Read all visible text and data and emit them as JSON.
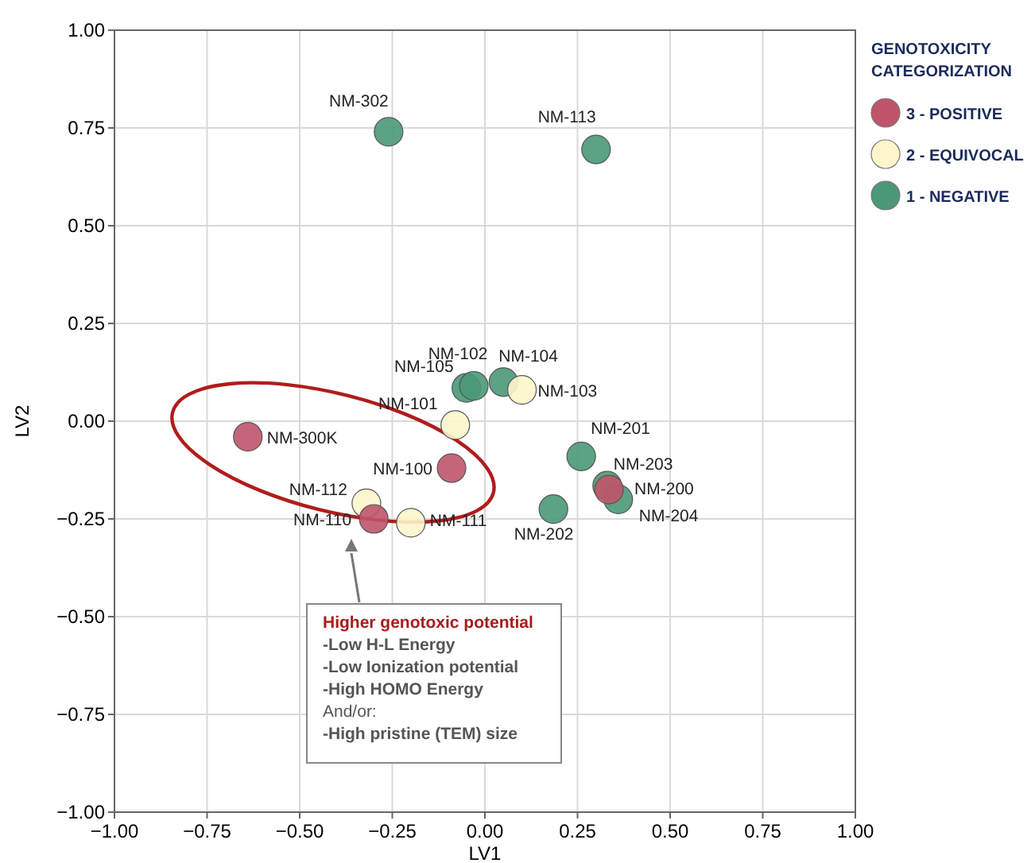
{
  "chart_data": {
    "type": "scatter",
    "xlabel": "LV1",
    "ylabel": "LV2",
    "xlim": [
      -1,
      1
    ],
    "ylim": [
      -1,
      1
    ],
    "xticks": [
      {
        "value": -1,
        "label": "−1.00"
      },
      {
        "value": -0.75,
        "label": "−0.75"
      },
      {
        "value": -0.5,
        "label": "−0.50"
      },
      {
        "value": -0.25,
        "label": "−0.25"
      },
      {
        "value": 0,
        "label": "0.00"
      },
      {
        "value": 0.25,
        "label": "0.25"
      },
      {
        "value": 0.5,
        "label": "0.50"
      },
      {
        "value": 0.75,
        "label": "0.75"
      },
      {
        "value": 1,
        "label": "1.00"
      }
    ],
    "yticks": [
      {
        "value": -1,
        "label": "−1.00"
      },
      {
        "value": -0.75,
        "label": "−0.75"
      },
      {
        "value": -0.5,
        "label": "−0.50"
      },
      {
        "value": -0.25,
        "label": "−0.25"
      },
      {
        "value": 0,
        "label": "0.00"
      },
      {
        "value": 0.25,
        "label": "0.25"
      },
      {
        "value": 0.5,
        "label": "0.50"
      },
      {
        "value": 0.75,
        "label": "0.75"
      },
      {
        "value": 1,
        "label": "1.00"
      }
    ],
    "grid": true,
    "marker": "circle",
    "legend": "top right",
    "legend_title": "GENOTOXICITY CATEGORIZATION",
    "series": [
      {
        "name": "3 - POSITIVE",
        "color": "#c0546a",
        "x": [
          -0.64,
          -0.09,
          -0.3,
          0.335
        ],
        "values": [
          -0.04,
          -0.12,
          -0.25,
          -0.175
        ],
        "value_labels": [
          "NM-300K",
          "NM-100",
          "NM-110",
          "NM-200"
        ]
      },
      {
        "name": "2 - EQUIVOCAL",
        "color": "#fdf6cc",
        "x": [
          -0.08,
          0.1,
          -0.32,
          -0.2
        ],
        "values": [
          -0.01,
          0.08,
          -0.21,
          -0.26
        ],
        "value_labels": [
          "NM-101",
          "NM-103",
          "NM-112",
          "NM-111"
        ]
      },
      {
        "name": "1 - NEGATIVE",
        "color": "#4a9878",
        "x": [
          -0.26,
          0.3,
          -0.05,
          -0.03,
          0.05,
          0.26,
          0.33,
          0.36,
          0.185
        ],
        "values": [
          0.74,
          0.695,
          0.085,
          0.09,
          0.1,
          -0.09,
          -0.165,
          -0.2,
          -0.225
        ],
        "value_labels": [
          "NM-302",
          "NM-113",
          "NM-105",
          "NM-102",
          "NM-104",
          "NM-201",
          "NM-203",
          "NM-204",
          "NM-202"
        ]
      }
    ],
    "annotations": [
      "Higher genotoxic potential",
      "-Low H-L Energy",
      "-Low Ionization potential",
      "-High HOMO Energy",
      "And/or:",
      "-High pristine (TEM) size"
    ]
  }
}
